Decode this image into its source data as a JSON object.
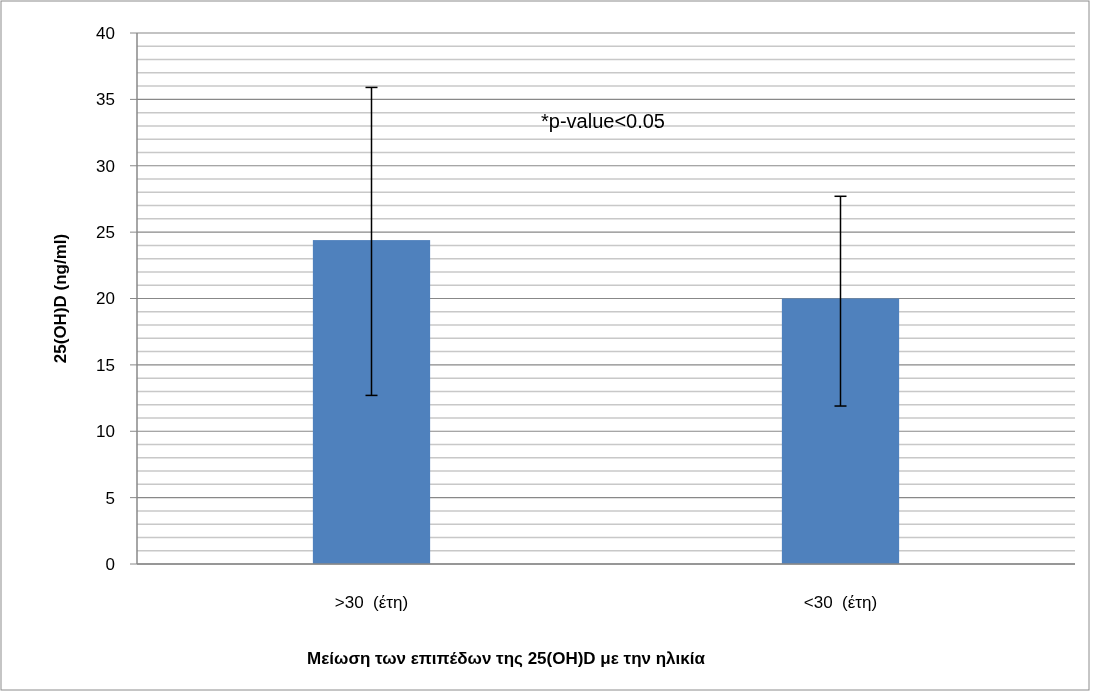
{
  "chart_data": {
    "type": "bar",
    "xlabel": "Μείωση των επιπέδων της 25(OH)D με την ηλικία",
    "ylabel": "25(OH)D (ng/ml)",
    "annotations": [
      "*p-value<0.05"
    ],
    "categories": [
      ">30  (έτη)",
      "<30  (έτη)"
    ],
    "values": [
      24.4,
      20.0
    ],
    "errors": [
      [
        12.7,
        35.9
      ],
      [
        11.9,
        27.7
      ]
    ],
    "color": "#4f81bd",
    "ylim": [
      0,
      40
    ],
    "yticks": [
      0,
      {
        "value": 1,
        "label": null
      },
      {
        "value": 2,
        "label": null
      },
      {
        "value": 3,
        "label": null
      },
      {
        "value": 4,
        "label": null
      },
      5,
      {
        "value": 6,
        "label": null
      },
      {
        "value": 7,
        "label": null
      },
      {
        "value": 8,
        "label": null
      },
      {
        "value": 9,
        "label": null
      },
      10,
      {
        "value": 11,
        "label": null
      },
      {
        "value": 12,
        "label": null
      },
      {
        "value": 13,
        "label": null
      },
      {
        "value": 14,
        "label": null
      },
      15,
      {
        "value": 16,
        "label": null
      },
      {
        "value": 17,
        "label": null
      },
      {
        "value": 18,
        "label": null
      },
      {
        "value": 19,
        "label": null
      },
      20,
      {
        "value": 21,
        "label": null
      },
      {
        "value": 22,
        "label": null
      },
      {
        "value": 23,
        "label": null
      },
      {
        "value": 24,
        "label": null
      },
      25,
      {
        "value": 26,
        "label": null
      },
      {
        "value": 27,
        "label": null
      },
      {
        "value": 28,
        "label": null
      },
      {
        "value": 29,
        "label": null
      },
      30,
      {
        "value": 31,
        "label": null
      },
      {
        "value": 32,
        "label": null
      },
      {
        "value": 33,
        "label": null
      },
      {
        "value": 34,
        "label": null
      },
      35,
      {
        "value": 36,
        "label": null
      },
      {
        "value": 37,
        "label": null
      },
      {
        "value": 38,
        "label": null
      },
      {
        "value": 39,
        "label": null
      },
      40
    ],
    "grid": "y"
  }
}
